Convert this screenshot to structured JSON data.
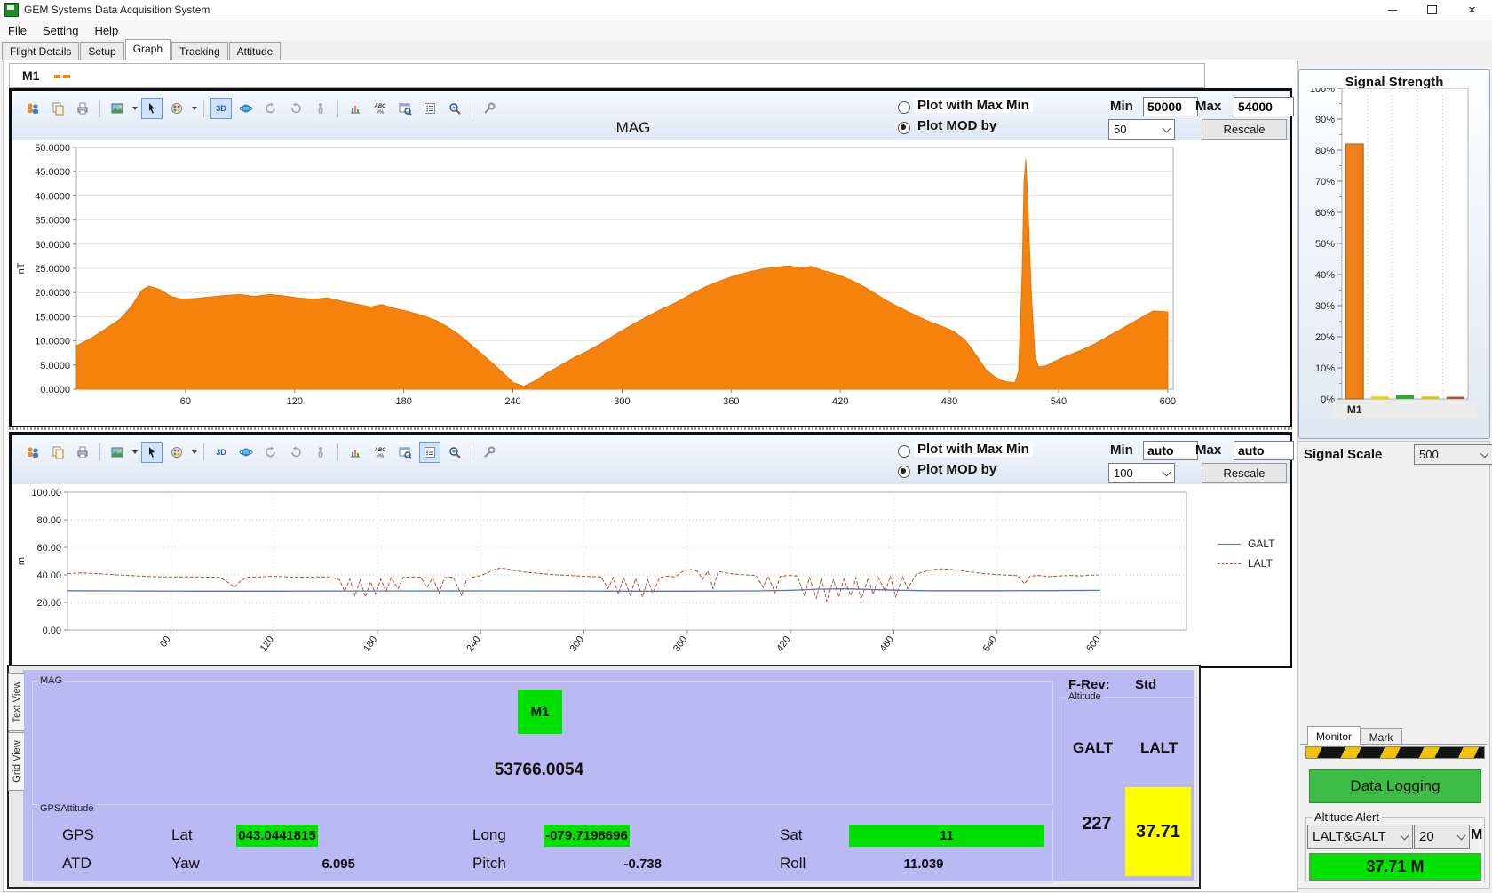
{
  "window": {
    "title": "GEM Systems Data Acquisition System"
  },
  "menu": {
    "items": [
      "File",
      "Setting",
      "Help"
    ]
  },
  "tabs": {
    "items": [
      "Flight Details",
      "Setup",
      "Graph",
      "Tracking",
      "Attitude"
    ],
    "active": "Graph"
  },
  "sensor_strip": {
    "label": "M1"
  },
  "colors": {
    "accent_orange": "#F5820D",
    "status_green": "#00E100",
    "alert_yellow": "#FFFF00",
    "panel_purple": "#B9B9F3",
    "galt_blue": "#4A7AB8",
    "lalt_red": "#B8503C",
    "logging_green": "#3DBD46"
  },
  "toolbar_icons": [
    "users",
    "copy",
    "print",
    "image",
    "pointer",
    "palette",
    "3d",
    "orbit",
    "rotate-left",
    "rotate-right",
    "walk",
    "chart",
    "text-labels",
    "window-zoom",
    "legend",
    "zoom",
    "tools"
  ],
  "chart1": {
    "controls": {
      "radio_maxmin": "Plot with Max Min",
      "radio_mod": "Plot MOD by",
      "min_label": "Min",
      "min_value": "50000",
      "max_label": "Max",
      "max_value": "54000",
      "mod_value": "50",
      "rescale": "Rescale"
    },
    "chart_data": {
      "type": "area",
      "title": "MAG",
      "ylabel": "nT",
      "x_range": [
        0,
        603
      ],
      "y_range": [
        0,
        50
      ],
      "y_ticks": [
        0,
        5,
        10,
        15,
        20,
        25,
        30,
        35,
        40,
        45,
        50
      ],
      "x_ticks": [
        60,
        120,
        180,
        240,
        300,
        360,
        420,
        480,
        540,
        600
      ],
      "color": "#F5820D",
      "points": [
        [
          0,
          9
        ],
        [
          8,
          10.5
        ],
        [
          16,
          12.5
        ],
        [
          24,
          14.5
        ],
        [
          30,
          17
        ],
        [
          36,
          20.5
        ],
        [
          40,
          21.3
        ],
        [
          46,
          20.6
        ],
        [
          52,
          19.2
        ],
        [
          58,
          18.6
        ],
        [
          66,
          18.8
        ],
        [
          74,
          19.1
        ],
        [
          82,
          19.4
        ],
        [
          90,
          19.6
        ],
        [
          98,
          19.2
        ],
        [
          106,
          19.6
        ],
        [
          114,
          19.3
        ],
        [
          122,
          18.9
        ],
        [
          130,
          18.6
        ],
        [
          138,
          18.9
        ],
        [
          146,
          18.2
        ],
        [
          154,
          17.6
        ],
        [
          162,
          17
        ],
        [
          168,
          17.5
        ],
        [
          174,
          16.8
        ],
        [
          182,
          16.1
        ],
        [
          190,
          15.3
        ],
        [
          198,
          14.2
        ],
        [
          204,
          12.9
        ],
        [
          210,
          11.4
        ],
        [
          216,
          9.5
        ],
        [
          222,
          7.6
        ],
        [
          228,
          5.6
        ],
        [
          234,
          3.6
        ],
        [
          240,
          1.4
        ],
        [
          246,
          0.6
        ],
        [
          252,
          1.7
        ],
        [
          258,
          3.2
        ],
        [
          266,
          4.9
        ],
        [
          274,
          6.6
        ],
        [
          282,
          8.1
        ],
        [
          290,
          9.8
        ],
        [
          298,
          11.7
        ],
        [
          306,
          13.4
        ],
        [
          314,
          15.1
        ],
        [
          322,
          16.6
        ],
        [
          330,
          18
        ],
        [
          338,
          19.7
        ],
        [
          346,
          21.2
        ],
        [
          354,
          22.4
        ],
        [
          362,
          23.5
        ],
        [
          370,
          24.3
        ],
        [
          378,
          24.9
        ],
        [
          386,
          25.3
        ],
        [
          392,
          25.5
        ],
        [
          398,
          25.1
        ],
        [
          404,
          25.4
        ],
        [
          410,
          24.6
        ],
        [
          416,
          24
        ],
        [
          422,
          23.2
        ],
        [
          428,
          22.2
        ],
        [
          434,
          21
        ],
        [
          440,
          19.6
        ],
        [
          446,
          18.2
        ],
        [
          452,
          17
        ],
        [
          458,
          15.9
        ],
        [
          464,
          14.8
        ],
        [
          470,
          13.8
        ],
        [
          476,
          13
        ],
        [
          482,
          12
        ],
        [
          488,
          10.4
        ],
        [
          492,
          8.5
        ],
        [
          496,
          6.3
        ],
        [
          500,
          4.1
        ],
        [
          504,
          2.8
        ],
        [
          508,
          1.9
        ],
        [
          512,
          1.5
        ],
        [
          516,
          1.3
        ],
        [
          518,
          3.6
        ],
        [
          520,
          24
        ],
        [
          521,
          43
        ],
        [
          522,
          47.5
        ],
        [
          523,
          39
        ],
        [
          525,
          20
        ],
        [
          527,
          7
        ],
        [
          529,
          4.6
        ],
        [
          533,
          4.8
        ],
        [
          538,
          5.8
        ],
        [
          544,
          6.8
        ],
        [
          552,
          8
        ],
        [
          560,
          9.4
        ],
        [
          568,
          11.1
        ],
        [
          576,
          12.8
        ],
        [
          584,
          14.5
        ],
        [
          592,
          16.2
        ],
        [
          600,
          16
        ]
      ]
    }
  },
  "chart2": {
    "controls": {
      "radio_maxmin": "Plot with Max Min",
      "radio_mod": "Plot MOD by",
      "min_label": "Min",
      "min_value": "auto",
      "max_label": "Max",
      "max_value": "auto",
      "mod_value": "100",
      "rescale": "Rescale"
    },
    "chart_data": {
      "type": "line",
      "ylabel": "m",
      "x_range": [
        0,
        650
      ],
      "y_range": [
        0,
        100
      ],
      "y_ticks": [
        0,
        20,
        40,
        60,
        80,
        100
      ],
      "x_ticks": [
        60,
        120,
        180,
        240,
        300,
        360,
        420,
        480,
        540,
        600
      ],
      "series": [
        {
          "name": "GALT",
          "color": "#4A7AB8",
          "style": "solid",
          "points": [
            [
              0,
              28.5
            ],
            [
              40,
              28.3
            ],
            [
              80,
              28.2
            ],
            [
              120,
              28.2
            ],
            [
              160,
              28.3
            ],
            [
              200,
              28.3
            ],
            [
              240,
              28.4
            ],
            [
              280,
              28.3
            ],
            [
              320,
              28.2
            ],
            [
              360,
              28.2
            ],
            [
              400,
              28.4
            ],
            [
              420,
              28.8
            ],
            [
              435,
              29.6
            ],
            [
              450,
              29.9
            ],
            [
              465,
              29.5
            ],
            [
              480,
              28.9
            ],
            [
              500,
              28.5
            ],
            [
              540,
              28.5
            ],
            [
              570,
              28.6
            ],
            [
              600,
              28.8
            ]
          ]
        },
        {
          "name": "LALT",
          "color": "#B8503C",
          "style": "dashed",
          "points": [
            [
              0,
              41
            ],
            [
              8,
              41.4
            ],
            [
              16,
              41
            ],
            [
              24,
              40.4
            ],
            [
              32,
              39.8
            ],
            [
              40,
              39.3
            ],
            [
              48,
              38.8
            ],
            [
              56,
              38.6
            ],
            [
              64,
              38.5
            ],
            [
              72,
              38.6
            ],
            [
              80,
              38.4
            ],
            [
              88,
              38.3
            ],
            [
              94,
              34
            ],
            [
              97,
              31
            ],
            [
              100,
              35
            ],
            [
              104,
              38.3
            ],
            [
              112,
              38.6
            ],
            [
              120,
              39
            ],
            [
              128,
              38.6
            ],
            [
              136,
              38.4
            ],
            [
              144,
              38.5
            ],
            [
              152,
              38.6
            ],
            [
              158,
              36.5
            ],
            [
              161,
              28
            ],
            [
              164,
              37
            ],
            [
              167,
              25
            ],
            [
              170,
              36
            ],
            [
              173,
              24
            ],
            [
              176,
              35
            ],
            [
              179,
              26
            ],
            [
              182,
              37
            ],
            [
              185,
              28
            ],
            [
              188,
              38
            ],
            [
              192,
              30
            ],
            [
              195,
              38.3
            ],
            [
              200,
              38.6
            ],
            [
              205,
              38.4
            ],
            [
              209,
              31
            ],
            [
              212,
              38
            ],
            [
              216,
              27
            ],
            [
              219,
              38
            ],
            [
              224,
              38.5
            ],
            [
              229,
              25
            ],
            [
              232,
              37.5
            ],
            [
              236,
              38.6
            ],
            [
              240,
              39.5
            ],
            [
              244,
              41.5
            ],
            [
              248,
              44
            ],
            [
              252,
              45
            ],
            [
              256,
              44.2
            ],
            [
              260,
              43
            ],
            [
              266,
              42
            ],
            [
              272,
              41.3
            ],
            [
              280,
              40.4
            ],
            [
              288,
              39.8
            ],
            [
              296,
              39.3
            ],
            [
              304,
              38.8
            ],
            [
              310,
              38.6
            ],
            [
              314,
              30
            ],
            [
              317,
              38
            ],
            [
              320,
              26
            ],
            [
              323,
              38
            ],
            [
              327,
              25
            ],
            [
              330,
              37.5
            ],
            [
              334,
              24
            ],
            [
              337,
              36.5
            ],
            [
              340,
              27
            ],
            [
              344,
              38
            ],
            [
              348,
              39
            ],
            [
              353,
              38.6
            ],
            [
              358,
              43
            ],
            [
              362,
              44
            ],
            [
              366,
              42.5
            ],
            [
              369,
              37
            ],
            [
              372,
              42.8
            ],
            [
              375,
              30
            ],
            [
              378,
              42.5
            ],
            [
              382,
              41.5
            ],
            [
              388,
              40.5
            ],
            [
              394,
              40
            ],
            [
              400,
              39.6
            ],
            [
              404,
              31
            ],
            [
              407,
              39
            ],
            [
              411,
              27
            ],
            [
              414,
              39
            ],
            [
              419,
              39.6
            ],
            [
              424,
              39.2
            ],
            [
              428,
              25
            ],
            [
              431,
              38
            ],
            [
              435,
              23
            ],
            [
              438,
              37.5
            ],
            [
              441,
              21
            ],
            [
              445,
              36.5
            ],
            [
              448,
              24
            ],
            [
              451,
              37
            ],
            [
              455,
              25
            ],
            [
              458,
              38
            ],
            [
              461,
              22
            ],
            [
              465,
              37.5
            ],
            [
              468,
              26
            ],
            [
              471,
              38
            ],
            [
              475,
              28
            ],
            [
              478,
              39
            ],
            [
              481,
              24
            ],
            [
              485,
              38.5
            ],
            [
              488,
              30
            ],
            [
              493,
              40.5
            ],
            [
              498,
              42.5
            ],
            [
              503,
              43.8
            ],
            [
              508,
              44.4
            ],
            [
              513,
              44
            ],
            [
              518,
              43.2
            ],
            [
              524,
              42.2
            ],
            [
              530,
              41.2
            ],
            [
              538,
              40.4
            ],
            [
              546,
              39.8
            ],
            [
              552,
              39.4
            ],
            [
              556,
              33.5
            ],
            [
              559,
              39
            ],
            [
              564,
              39.6
            ],
            [
              570,
              38.8
            ],
            [
              576,
              39.2
            ],
            [
              582,
              39.6
            ],
            [
              588,
              39.2
            ],
            [
              594,
              39.8
            ],
            [
              600,
              40
            ]
          ]
        }
      ]
    }
  },
  "signal": {
    "title": "Signal Strength",
    "scale_label": "Signal Scale",
    "scale_value": "500",
    "chart_data": {
      "type": "bar",
      "y_ticks": [
        0,
        10,
        20,
        30,
        40,
        50,
        60,
        70,
        80,
        90,
        100
      ],
      "y_tick_suffix": "%",
      "bars": [
        {
          "label": "M1",
          "value": 82,
          "color": "#F08019"
        },
        {
          "label": "",
          "value": 0.8,
          "color": "#F2D000"
        },
        {
          "label": "",
          "value": 1.3,
          "color": "#30A830"
        },
        {
          "label": "",
          "value": 0.8,
          "color": "#D8C800"
        },
        {
          "label": "",
          "value": 0.7,
          "color": "#B05030"
        }
      ]
    }
  },
  "monitor_panel": {
    "monitor_tab": "Monitor",
    "mark_tab": "Mark",
    "data_logging_label": "Data Logging",
    "altitude_alert_label": "Altitude Alert",
    "alert_source": "LALT&GALT",
    "alert_threshold": "20",
    "alert_unit": "M",
    "alert_display": "37.71 M"
  },
  "status": {
    "mag_group_label": "MAG",
    "sensor_badge": "M1",
    "mag_value": "53766.0054",
    "gps_group_label": "GPSAttitude",
    "gps_label": "GPS",
    "lat_label": "Lat",
    "lat_value": "043.0441815",
    "long_label": "Long",
    "long_value": "-079.7198696",
    "sat_label": "Sat",
    "sat_value": "11",
    "atd_label": "ATD",
    "yaw_label": "Yaw",
    "yaw_value": "6.095",
    "pitch_label": "Pitch",
    "pitch_value": "-0.738",
    "roll_label": "Roll",
    "roll_value": "11.039",
    "f_rev_label": "F-Rev:",
    "f_rev_value": "Std",
    "altitude_group_label": "Altitude",
    "galt_header": "GALT",
    "lalt_header": "LALT",
    "galt_value": "227",
    "lalt_value": "37.71"
  },
  "side_tabs": {
    "text_view": "Text View",
    "grid_view": "Grid View"
  }
}
